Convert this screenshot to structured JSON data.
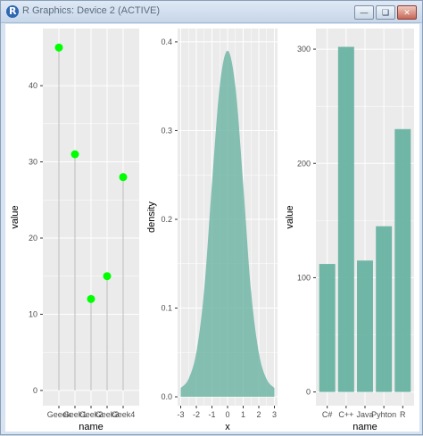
{
  "window": {
    "title": "R Graphics: Device 2 (ACTIVE)",
    "minimize_icon": "minimize-icon",
    "restore_icon": "restore-icon",
    "close_icon": "close-icon"
  },
  "colors": {
    "panel_bg": "#ebebeb",
    "grid": "#ffffff",
    "point": "#00ff00",
    "stem": "#bdbdbd",
    "fill": "#69b3a2"
  },
  "chart_data": [
    {
      "type": "scatter",
      "subtype": "lollipop",
      "categories": [
        "Geeek",
        "Geek1",
        "Geek2",
        "Geek3",
        "Geek4"
      ],
      "values": [
        45,
        31,
        12,
        15,
        28
      ],
      "xlabel": "name",
      "ylabel": "value",
      "ylim": [
        -2,
        47.5
      ],
      "yticks": [
        0,
        10,
        20,
        30,
        40
      ],
      "grid": true
    },
    {
      "type": "area",
      "subtype": "density",
      "x": [
        -3,
        -2.5,
        -2,
        -1.5,
        -1,
        -0.5,
        0,
        0.5,
        1,
        1.5,
        2,
        2.5,
        3
      ],
      "values": [
        0.01,
        0.02,
        0.05,
        0.12,
        0.24,
        0.35,
        0.39,
        0.35,
        0.24,
        0.12,
        0.05,
        0.02,
        0.01
      ],
      "xlabel": "x",
      "ylabel": "density",
      "xlim": [
        -3.2,
        3.2
      ],
      "ylim": [
        -0.01,
        0.415
      ],
      "xticks": [
        -3,
        -2,
        -1,
        0,
        1,
        2,
        3
      ],
      "yticks": [
        0.0,
        0.1,
        0.2,
        0.3,
        0.4
      ],
      "ytick_labels": [
        "0.0",
        "0.1",
        "0.2",
        "0.3",
        "0.4"
      ],
      "grid": true
    },
    {
      "type": "bar",
      "categories": [
        "C#",
        "C++",
        "Java",
        "Pyhton",
        "R"
      ],
      "values": [
        112,
        302,
        115,
        145,
        230
      ],
      "xlabel": "name",
      "ylabel": "value",
      "ylim": [
        -12,
        318
      ],
      "yticks": [
        0,
        100,
        200,
        300
      ],
      "grid": true
    }
  ]
}
